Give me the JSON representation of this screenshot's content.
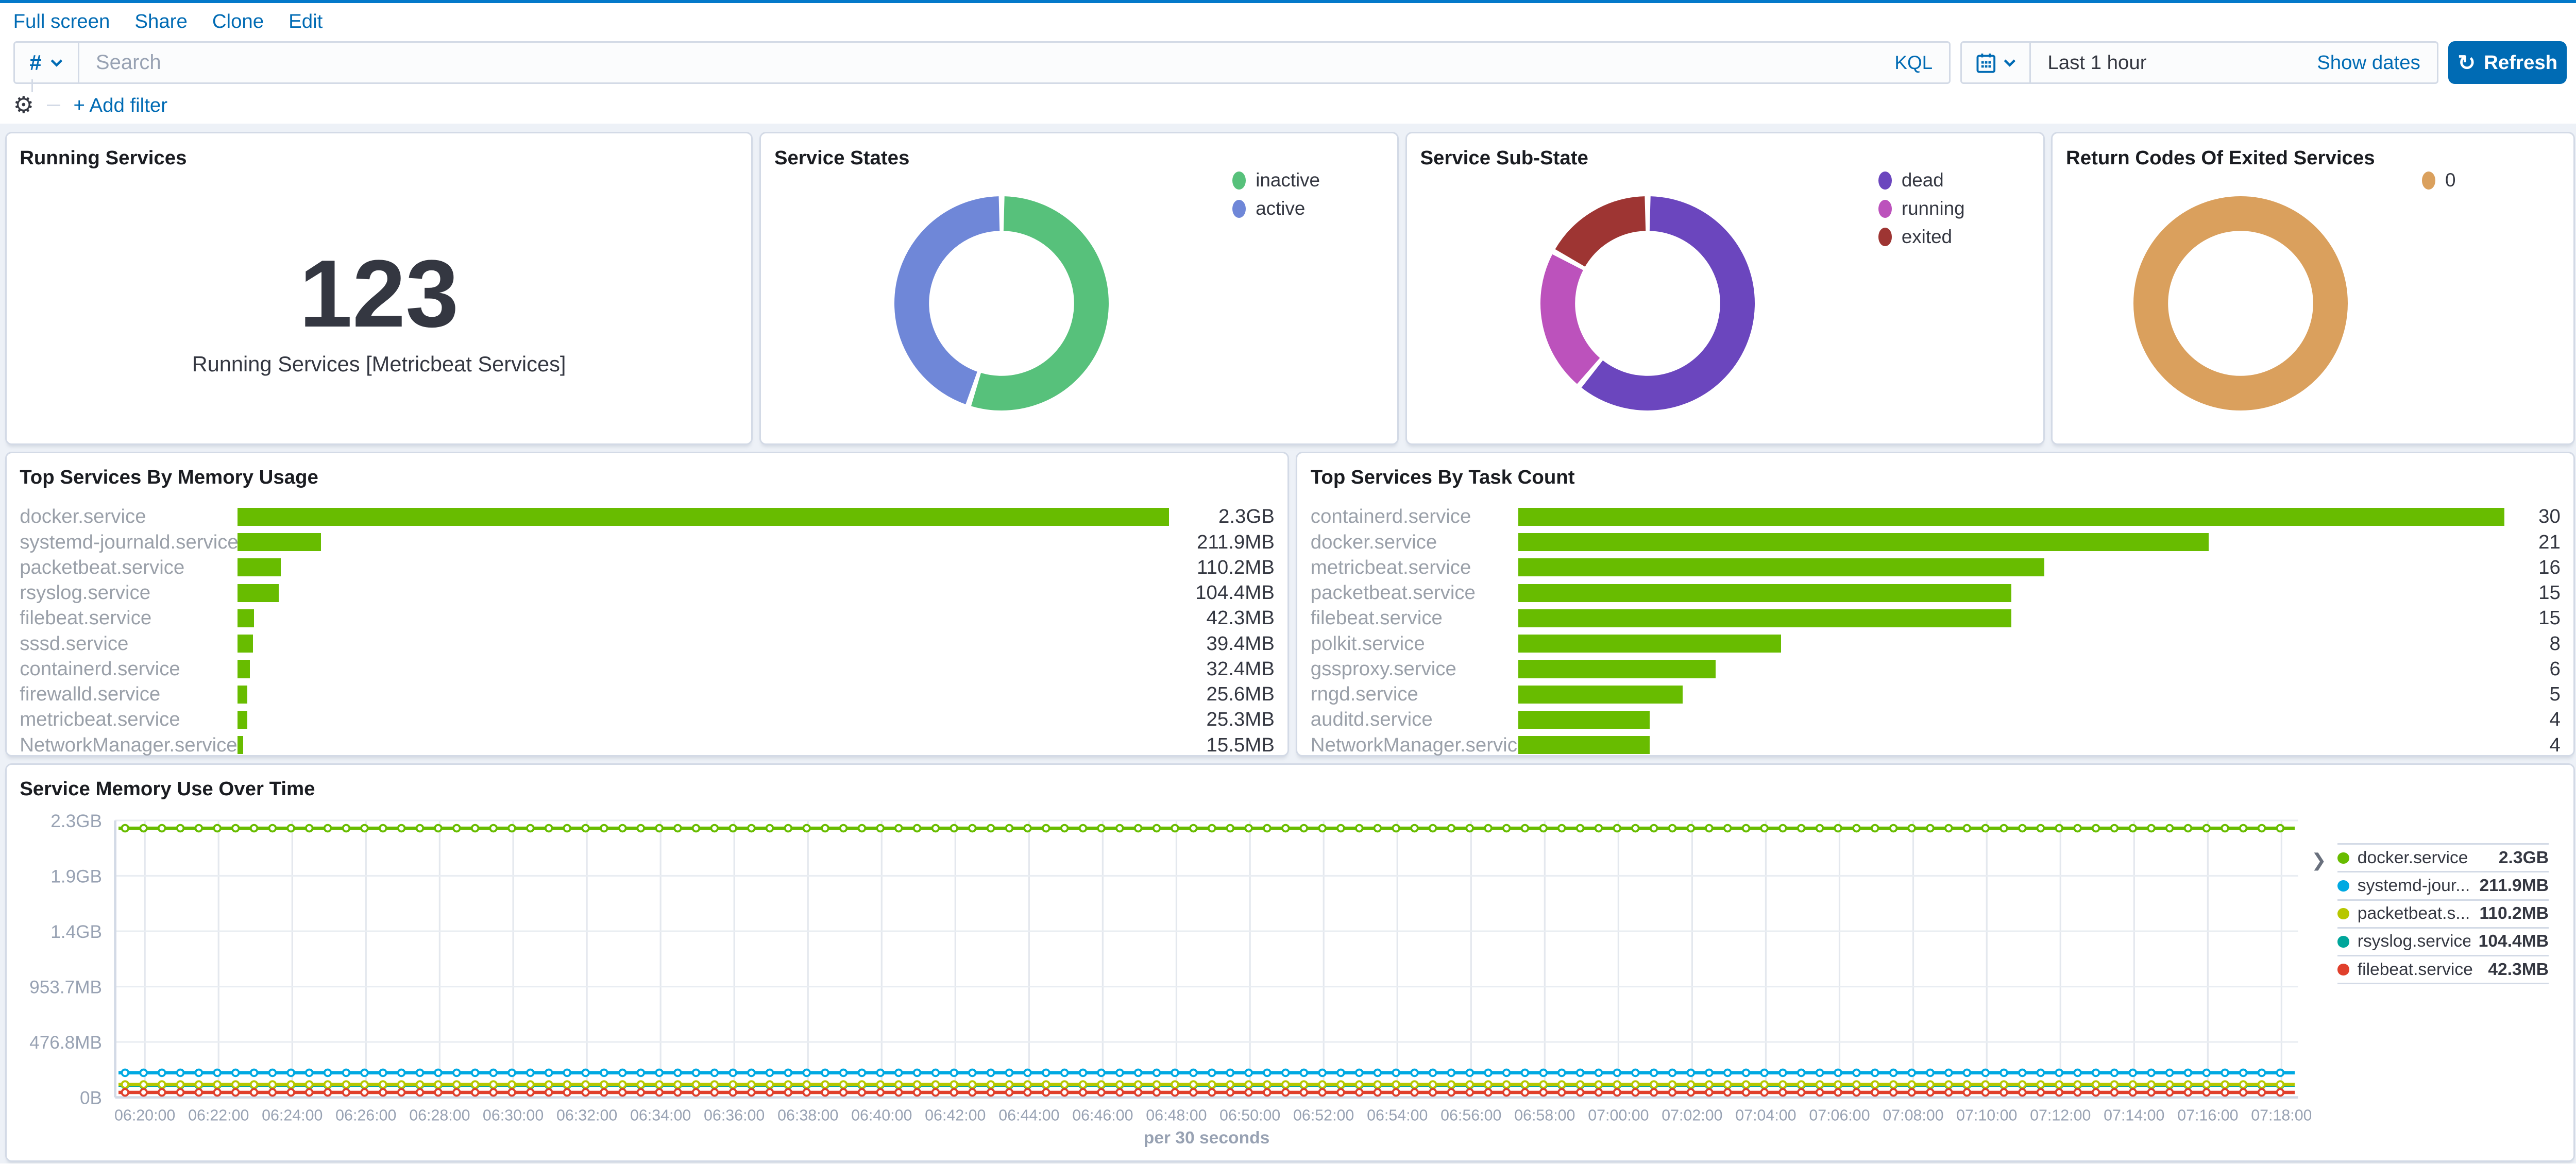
{
  "chrome": {
    "menu_links": [
      "Full screen",
      "Share",
      "Clone",
      "Edit"
    ],
    "query": {
      "field_symbol": "#",
      "search_placeholder": "Search",
      "language_label": "KQL",
      "time_range": "Last 1 hour",
      "show_dates_label": "Show dates",
      "refresh_label": "Refresh"
    },
    "filter": {
      "add_filter_label": "+ Add filter"
    }
  },
  "colors": {
    "accent_blue": "#006BB4",
    "bar_green": "#68BC00",
    "page_background": "#EDF1F7",
    "panel_border": "#D3DAE6",
    "muted_text": "#98A2B3"
  },
  "panels": {
    "running_services": {
      "title": "Running Services",
      "value": "123",
      "subtitle": "Running Services [Metricbeat Services]"
    },
    "service_states": {
      "title": "Service States",
      "chart_data": {
        "type": "pie",
        "donut": true,
        "labels": [
          "inactive",
          "active"
        ],
        "values": [
          55,
          45
        ],
        "colors": [
          "#57C17B",
          "#6F87D8"
        ],
        "legend_position": "right"
      }
    },
    "service_sub_state": {
      "title": "Service Sub-State",
      "chart_data": {
        "type": "pie",
        "donut": true,
        "labels": [
          "dead",
          "running",
          "exited"
        ],
        "values": [
          61,
          22,
          17
        ],
        "colors": [
          "#6B46BE",
          "#BC52BC",
          "#9E3533"
        ],
        "legend_position": "right"
      }
    },
    "return_codes": {
      "title": "Return Codes Of Exited Services",
      "chart_data": {
        "type": "pie",
        "donut": true,
        "labels": [
          "0"
        ],
        "values": [
          100
        ],
        "colors": [
          "#DAA05D"
        ],
        "legend_position": "right"
      }
    },
    "memory_usage": {
      "title": "Top Services By Memory Usage",
      "chart_data": {
        "type": "bar",
        "orientation": "horizontal",
        "color": "#68BC00",
        "max": 2355.2,
        "items": [
          {
            "label": "docker.service",
            "value": 2355.2,
            "display": "2.3GB"
          },
          {
            "label": "systemd-journald.service",
            "value": 211.9,
            "display": "211.9MB"
          },
          {
            "label": "packetbeat.service",
            "value": 110.2,
            "display": "110.2MB"
          },
          {
            "label": "rsyslog.service",
            "value": 104.4,
            "display": "104.4MB"
          },
          {
            "label": "filebeat.service",
            "value": 42.3,
            "display": "42.3MB"
          },
          {
            "label": "sssd.service",
            "value": 39.4,
            "display": "39.4MB"
          },
          {
            "label": "containerd.service",
            "value": 32.4,
            "display": "32.4MB"
          },
          {
            "label": "firewalld.service",
            "value": 25.6,
            "display": "25.6MB"
          },
          {
            "label": "metricbeat.service",
            "value": 25.3,
            "display": "25.3MB"
          },
          {
            "label": "NetworkManager.service",
            "value": 15.5,
            "display": "15.5MB"
          }
        ]
      }
    },
    "task_count": {
      "title": "Top Services By Task Count",
      "chart_data": {
        "type": "bar",
        "orientation": "horizontal",
        "color": "#68BC00",
        "max": 30,
        "items": [
          {
            "label": "containerd.service",
            "value": 30,
            "display": "30"
          },
          {
            "label": "docker.service",
            "value": 21,
            "display": "21"
          },
          {
            "label": "metricbeat.service",
            "value": 16,
            "display": "16"
          },
          {
            "label": "packetbeat.service",
            "value": 15,
            "display": "15"
          },
          {
            "label": "filebeat.service",
            "value": 15,
            "display": "15"
          },
          {
            "label": "polkit.service",
            "value": 8,
            "display": "8"
          },
          {
            "label": "gssproxy.service",
            "value": 6,
            "display": "6"
          },
          {
            "label": "rngd.service",
            "value": 5,
            "display": "5"
          },
          {
            "label": "auditd.service",
            "value": 4,
            "display": "4"
          },
          {
            "label": "NetworkManager.service",
            "value": 4,
            "display": "4"
          }
        ]
      }
    },
    "memory_over_time": {
      "title": "Service Memory Use Over Time",
      "chart_data": {
        "type": "line",
        "xlabel": "per 30 seconds",
        "grid": true,
        "y_max_bytes": 2500000000,
        "y_ticks": [
          "2.3GB",
          "1.9GB",
          "1.4GB",
          "953.7MB",
          "476.8MB",
          "0B"
        ],
        "x_ticks": [
          "06:20:00",
          "06:22:00",
          "06:24:00",
          "06:26:00",
          "06:28:00",
          "06:30:00",
          "06:32:00",
          "06:34:00",
          "06:36:00",
          "06:38:00",
          "06:40:00",
          "06:42:00",
          "06:44:00",
          "06:46:00",
          "06:48:00",
          "06:50:00",
          "06:52:00",
          "06:54:00",
          "06:56:00",
          "06:58:00",
          "07:00:00",
          "07:02:00",
          "07:04:00",
          "07:06:00",
          "07:08:00",
          "07:10:00",
          "07:12:00",
          "07:14:00",
          "07:16:00",
          "07:18:00"
        ],
        "draw_order": [
          0,
          1,
          3,
          2,
          4
        ],
        "series": [
          {
            "name": "docker.service",
            "legend_label": "docker.service",
            "value_bytes": 2430000000,
            "display": "2.3GB",
            "color": "#68BC00"
          },
          {
            "name": "systemd-journald.service",
            "legend_label": "systemd-jour...",
            "value_bytes": 222200000,
            "display": "211.9MB",
            "color": "#00A9E2"
          },
          {
            "name": "packetbeat.service",
            "legend_label": "packetbeat.s...",
            "value_bytes": 115600000,
            "display": "110.2MB",
            "color": "#B7C700"
          },
          {
            "name": "rsyslog.service",
            "legend_label": "rsyslog.service",
            "value_bytes": 109500000,
            "display": "104.4MB",
            "color": "#00A69B"
          },
          {
            "name": "filebeat.service",
            "legend_label": "filebeat.service",
            "value_bytes": 44400000,
            "display": "42.3MB",
            "color": "#E0402C"
          }
        ]
      }
    }
  }
}
